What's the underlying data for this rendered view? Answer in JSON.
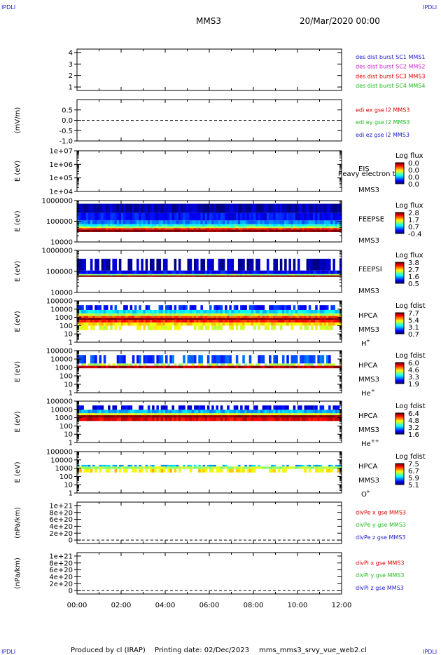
{
  "header": {
    "corner_tl": "IPDLI",
    "corner_tr": "IPDLI",
    "spacecraft": "MMS3",
    "date": "20/Mar/2020 00:00"
  },
  "footer": {
    "produced_by": "Produced by cl (IRAP)",
    "printing_date": "Printing date: 02/Dec/2023",
    "script_name": "mms_mms3_srvy_vue_web2.cl",
    "corner_bl": "IPDLI",
    "corner_br": "IPDLI"
  },
  "colors": {
    "blue": "#1a1acc",
    "magenta": "#cc22cc",
    "red": "#dd0000",
    "green": "#22bb22"
  },
  "chart_data": {
    "type": "heatmap",
    "x_axis": {
      "range": [
        "00:00",
        "12:00"
      ],
      "tick_labels": [
        "00:00",
        "02:00",
        "04:00",
        "06:00",
        "08:00",
        "10:00",
        "12:00"
      ]
    },
    "panels": [
      {
        "id": "burst",
        "ylabel": "",
        "tick_labels": [
          "4",
          "3",
          "2",
          "1"
        ],
        "tick_values": [
          4,
          3,
          2,
          1
        ],
        "ylim": [
          0.7,
          4.3
        ],
        "scale": "linear",
        "legend": [
          {
            "text": "des dist burst SC1 MMS1",
            "color": "#1a1acc"
          },
          {
            "text": "des dist burst SC2 MMS2",
            "color": "#cc22cc"
          },
          {
            "text": "des dist burst SC3 MMS3",
            "color": "#dd0000"
          },
          {
            "text": "des dist burst SC4 MMS4",
            "color": "#22bb22"
          }
        ]
      },
      {
        "id": "edi",
        "ylabel": "(mV/m)",
        "tick_labels": [
          "0.5",
          "0.0",
          "-0.5",
          "-1.0"
        ],
        "tick_values": [
          0.5,
          0.0,
          -0.5,
          -1.0
        ],
        "ylim": [
          -1.0,
          1.0
        ],
        "scale": "linear",
        "dashed_zero": true,
        "legend": [
          {
            "text": "edi ex gse l2 MMS3",
            "color": "#dd0000"
          },
          {
            "text": "edi ey gse l2 MMS3",
            "color": "#22bb22"
          },
          {
            "text": "edi ez gse l2 MMS3",
            "color": "#1a1acc"
          }
        ]
      },
      {
        "id": "eis",
        "ylabel": "E (eV)",
        "tick_labels": [
          "1e+07",
          "1e+06",
          "1e+05",
          "1e+04"
        ],
        "tick_values": [
          10000000,
          1000000,
          100000,
          10000
        ],
        "ylim": [
          10000,
          10000000
        ],
        "scale": "log",
        "instrument": "EIS",
        "instrument_extra": "heavy electron to",
        "sc": "MMS3",
        "colorbar": {
          "title": "Log flux",
          "labels": [
            "0.0",
            "0.0",
            "0.0",
            "0.0"
          ]
        }
      },
      {
        "id": "feepse",
        "ylabel": "E (eV)",
        "tick_labels": [
          "1000000",
          "100000",
          "10000"
        ],
        "tick_values": [
          1000000,
          100000,
          10000
        ],
        "ylim": [
          10000,
          1000000
        ],
        "scale": "log",
        "instrument": "FEEPSE",
        "sc": "MMS3",
        "colorbar": {
          "title": "Log flux",
          "labels": [
            "2.8",
            "1.7",
            "0.7",
            "-0.4"
          ]
        },
        "spectrogram_bands": [
          {
            "e_lo": 30000,
            "e_hi": 40000,
            "level": 1.0
          },
          {
            "e_lo": 40000,
            "e_hi": 47000,
            "level": 0.85
          },
          {
            "e_lo": 47000,
            "e_hi": 56000,
            "level": 0.55
          },
          {
            "e_lo": 56000,
            "e_hi": 72000,
            "level": 0.4
          },
          {
            "e_lo": 72000,
            "e_hi": 110000,
            "level": 0.25
          },
          {
            "e_lo": 110000,
            "e_hi": 250000,
            "level": 0.13
          },
          {
            "e_lo": 250000,
            "e_hi": 700000,
            "level": 0.05
          }
        ]
      },
      {
        "id": "feepsi",
        "ylabel": "E (eV)",
        "tick_labels": [
          "1000000",
          "100000",
          "10000"
        ],
        "tick_values": [
          1000000,
          100000,
          10000
        ],
        "ylim": [
          10000,
          1000000
        ],
        "scale": "log",
        "instrument": "FEEPSI",
        "sc": "MMS3",
        "colorbar": {
          "title": "Log flux",
          "labels": [
            "3.8",
            "2.7",
            "1.6",
            "0.5"
          ]
        },
        "spectrogram_bands": [
          {
            "e_lo": 55000,
            "e_hi": 65000,
            "level": 1.0
          },
          {
            "e_lo": 65000,
            "e_hi": 75000,
            "level": 0.5
          },
          {
            "e_lo": 75000,
            "e_hi": 110000,
            "level": 0.12
          },
          {
            "e_lo": 110000,
            "e_hi": 400000,
            "level": 0.05,
            "sparse": true
          }
        ]
      },
      {
        "id": "hpca_h",
        "ylabel": "E (eV)",
        "tick_labels": [
          "100000",
          "10000",
          "1000",
          "100",
          "10",
          "1"
        ],
        "tick_values": [
          100000,
          10000,
          1000,
          100,
          10,
          1
        ],
        "ylim": [
          1,
          100000
        ],
        "scale": "log",
        "instrument": "HPCA",
        "sc": "MMS3",
        "species": "H",
        "species_sup": "+",
        "colorbar": {
          "title": "Log fdist",
          "labels": [
            "7.7",
            "5.4",
            "3.1",
            "0.7"
          ]
        },
        "spectrogram_bands": [
          {
            "e_lo": 30,
            "e_hi": 100,
            "level": 0.6,
            "sparse": true
          },
          {
            "e_lo": 100,
            "e_hi": 250,
            "level": 0.65
          },
          {
            "e_lo": 250,
            "e_hi": 500,
            "level": 0.85
          },
          {
            "e_lo": 500,
            "e_hi": 900,
            "level": 1.0
          },
          {
            "e_lo": 900,
            "e_hi": 1500,
            "level": 0.8
          },
          {
            "e_lo": 1500,
            "e_hi": 3000,
            "level": 0.55
          },
          {
            "e_lo": 3000,
            "e_hi": 8000,
            "level": 0.35
          },
          {
            "e_lo": 8000,
            "e_hi": 30000,
            "level": 0.15,
            "sparse": true
          }
        ]
      },
      {
        "id": "hpca_he",
        "ylabel": "E (eV)",
        "tick_labels": [
          "100000",
          "10000",
          "1000",
          "100",
          "10",
          "1"
        ],
        "tick_values": [
          100000,
          10000,
          1000,
          100,
          10,
          1
        ],
        "ylim": [
          1,
          100000
        ],
        "scale": "log",
        "instrument": "HPCA",
        "sc": "MMS3",
        "species": "He",
        "species_sup": "+",
        "colorbar": {
          "title": "Log fdist",
          "labels": [
            "6.0",
            "4.6",
            "3.3",
            "1.9"
          ]
        },
        "spectrogram_bands": [
          {
            "e_lo": 800,
            "e_hi": 1600,
            "level": 0.95
          },
          {
            "e_lo": 1600,
            "e_hi": 3000,
            "level": 0.55,
            "sparse": true
          },
          {
            "e_lo": 3000,
            "e_hi": 30000,
            "level": 0.2,
            "sparse": true
          }
        ]
      },
      {
        "id": "hpca_hepp",
        "ylabel": "E (eV)",
        "tick_labels": [
          "100000",
          "10000",
          "1000",
          "100",
          "10",
          "1"
        ],
        "tick_values": [
          100000,
          10000,
          1000,
          100,
          10,
          1
        ],
        "ylim": [
          1,
          100000
        ],
        "scale": "log",
        "instrument": "HPCA",
        "sc": "MMS3",
        "species": "He",
        "species_sup": "++",
        "colorbar": {
          "title": "Log fdist",
          "labels": [
            "6.4",
            "4.8",
            "3.2",
            "1.6"
          ]
        },
        "spectrogram_bands": [
          {
            "e_lo": 400,
            "e_hi": 1000,
            "level": 0.9
          },
          {
            "e_lo": 1000,
            "e_hi": 2000,
            "level": 1.0
          },
          {
            "e_lo": 2000,
            "e_hi": 3500,
            "level": 0.6
          },
          {
            "e_lo": 3500,
            "e_hi": 9000,
            "level": 0.3
          },
          {
            "e_lo": 9000,
            "e_hi": 30000,
            "level": 0.1,
            "sparse": true
          }
        ]
      },
      {
        "id": "hpca_o",
        "ylabel": "E (eV)",
        "tick_labels": [
          "100000",
          "10000",
          "1000",
          "100",
          "10",
          "1"
        ],
        "tick_values": [
          100000,
          10000,
          1000,
          100,
          10,
          1
        ],
        "ylim": [
          1,
          100000
        ],
        "scale": "log",
        "instrument": "HPCA",
        "sc": "MMS3",
        "species": "O",
        "species_sup": "+",
        "colorbar": {
          "title": "Log fdist",
          "labels": [
            "7.5",
            "6.7",
            "5.9",
            "5.1"
          ]
        },
        "spectrogram_bands": [
          {
            "e_lo": 300,
            "e_hi": 800,
            "level": 0.65,
            "sparse": true
          },
          {
            "e_lo": 800,
            "e_hi": 1600,
            "level": 0.55
          },
          {
            "e_lo": 1600,
            "e_hi": 2500,
            "level": 0.3,
            "sparse": true
          }
        ]
      },
      {
        "id": "divpe",
        "ylabel": "(nPa/km)",
        "tick_labels": [
          "1e+21",
          "8e+20",
          "6e+20",
          "4e+20",
          "2e+20",
          "0"
        ],
        "tick_values": [
          1e+21,
          8e+20,
          6e+20,
          4e+20,
          2e+20,
          0
        ],
        "ylim": [
          -1e+20,
          1.1e+21
        ],
        "scale": "linear",
        "dashed_zero": true,
        "legend": [
          {
            "text": "divPe x gse MMS3",
            "color": "#dd0000"
          },
          {
            "text": "divPe y gse MMS3",
            "color": "#22bb22"
          },
          {
            "text": "divPe z gse MMS3",
            "color": "#1a1acc"
          }
        ]
      },
      {
        "id": "divpi",
        "ylabel": "(nPa/km)",
        "tick_labels": [
          "1e+21",
          "8e+20",
          "6e+20",
          "4e+20",
          "2e+20",
          "0"
        ],
        "tick_values": [
          1e+21,
          8e+20,
          6e+20,
          4e+20,
          2e+20,
          0
        ],
        "ylim": [
          -1e+20,
          1.1e+21
        ],
        "scale": "linear",
        "dashed_zero": true,
        "legend": [
          {
            "text": "divPi x gse MMS3",
            "color": "#dd0000"
          },
          {
            "text": "divPi y gse MMS3",
            "color": "#22bb22"
          },
          {
            "text": "divPi z gse MMS3",
            "color": "#1a1acc"
          }
        ]
      }
    ]
  }
}
